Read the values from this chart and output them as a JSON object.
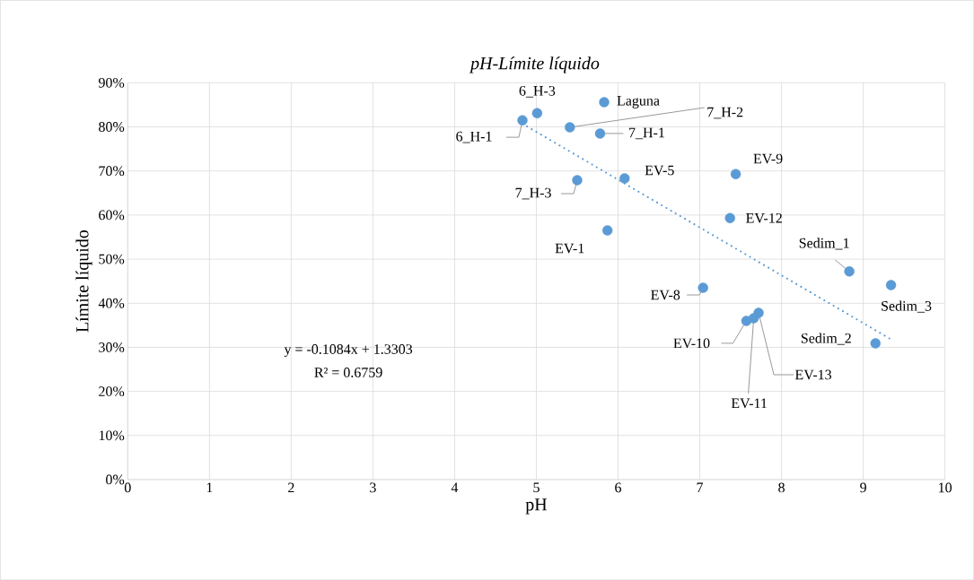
{
  "chart_data": {
    "type": "scatter",
    "title": "*pH-Límite líquido*",
    "xlabel": "pH",
    "ylabel": "Límite líquido",
    "xlim": [
      0,
      10
    ],
    "xticks": [
      0,
      1,
      2,
      3,
      4,
      5,
      6,
      7,
      8,
      9,
      10
    ],
    "ylim": [
      0,
      90
    ],
    "yticks": [
      {
        "value": 0,
        "label": "0%"
      },
      {
        "value": 10,
        "label": "10%"
      },
      {
        "value": 20,
        "label": "20%"
      },
      {
        "value": 30,
        "label": "30%"
      },
      {
        "value": 40,
        "label": "40%"
      },
      {
        "value": 50,
        "label": "50%"
      },
      {
        "value": 60,
        "label": "60%"
      },
      {
        "value": 70,
        "label": "70%"
      },
      {
        "value": 80,
        "label": "80%"
      },
      {
        "value": 90,
        "label": "90%"
      }
    ],
    "grid": true,
    "series": [
      {
        "color": "#5b9bd5",
        "marker": "circle",
        "x": [
          4.83,
          5.01,
          5.83,
          5.41,
          5.78,
          5.5,
          6.08,
          7.44,
          5.87,
          7.37,
          8.83,
          9.34,
          7.04,
          7.57,
          7.66,
          7.72,
          9.15
        ],
        "values": [
          81.5,
          83.1,
          85.6,
          79.9,
          78.5,
          67.9,
          68.3,
          69.3,
          56.5,
          59.3,
          47.2,
          44.1,
          43.5,
          36.0,
          36.6,
          37.8,
          30.9
        ]
      },
      {
        "type": "line",
        "color": "#5b9bd5",
        "line_style": "dotted",
        "marker": "none",
        "x": [
          4.83,
          9.34
        ],
        "values": [
          80.7,
          31.8
        ]
      }
    ],
    "annotations": [
      {
        "text": "6_H-1",
        "x": 4.83,
        "y": 81.5
      },
      {
        "text": "6_H-3",
        "x": 5.01,
        "y": 83.1
      },
      {
        "text": "Laguna",
        "x": 5.83,
        "y": 85.6
      },
      {
        "text": "7_H-2",
        "x": 5.41,
        "y": 79.9
      },
      {
        "text": "7_H-1",
        "x": 5.78,
        "y": 78.5
      },
      {
        "text": "7_H-3",
        "x": 5.5,
        "y": 67.9
      },
      {
        "text": "EV-5",
        "x": 6.08,
        "y": 68.3
      },
      {
        "text": "EV-9",
        "x": 7.44,
        "y": 69.3
      },
      {
        "text": "EV-1",
        "x": 5.87,
        "y": 56.5
      },
      {
        "text": "EV-12",
        "x": 7.37,
        "y": 59.3
      },
      {
        "text": "Sedim_1",
        "x": 8.83,
        "y": 47.2
      },
      {
        "text": "Sedim_3",
        "x": 9.34,
        "y": 44.1
      },
      {
        "text": "EV-8",
        "x": 7.04,
        "y": 43.5
      },
      {
        "text": "EV-10",
        "x": 7.57,
        "y": 36.0
      },
      {
        "text": "EV-11",
        "x": 7.66,
        "y": 36.6
      },
      {
        "text": "EV-13",
        "x": 7.72,
        "y": 37.8
      },
      {
        "text": "Sedim_2",
        "x": 9.15,
        "y": 30.9
      },
      "y = -0.1084x + 1.3303",
      "R² = 0.6759"
    ]
  }
}
